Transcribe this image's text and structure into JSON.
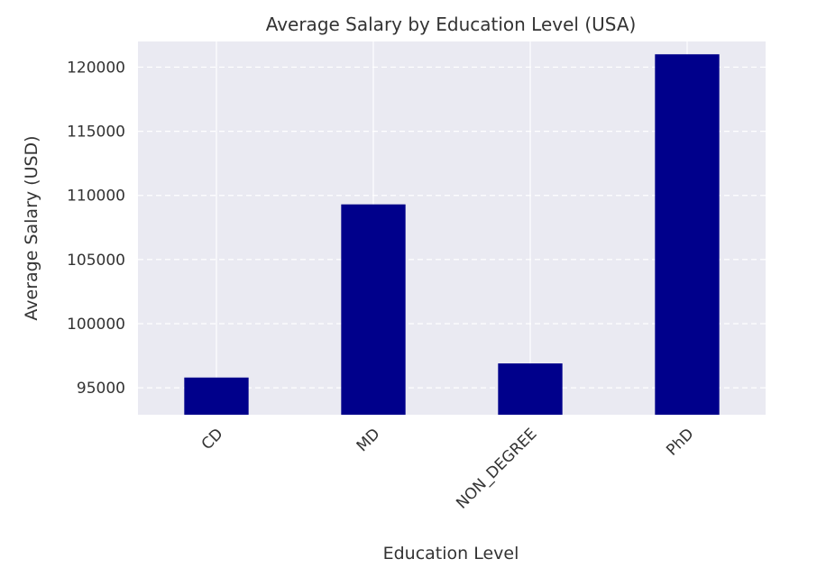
{
  "chart_data": {
    "type": "bar",
    "title": "Average Salary by Education Level (USA)",
    "xlabel": "Education Level",
    "ylabel": "Average Salary (USD)",
    "categories": [
      "CD",
      "MD",
      "NON_DEGREE",
      "PhD"
    ],
    "values": [
      95800,
      109300,
      96900,
      121000
    ],
    "ylim": [
      92900,
      122000
    ],
    "yticks": [
      95000,
      100000,
      105000,
      110000,
      115000,
      120000
    ],
    "grid": true,
    "bar_color": "#00008b",
    "background_color": "#eaeaf2"
  }
}
